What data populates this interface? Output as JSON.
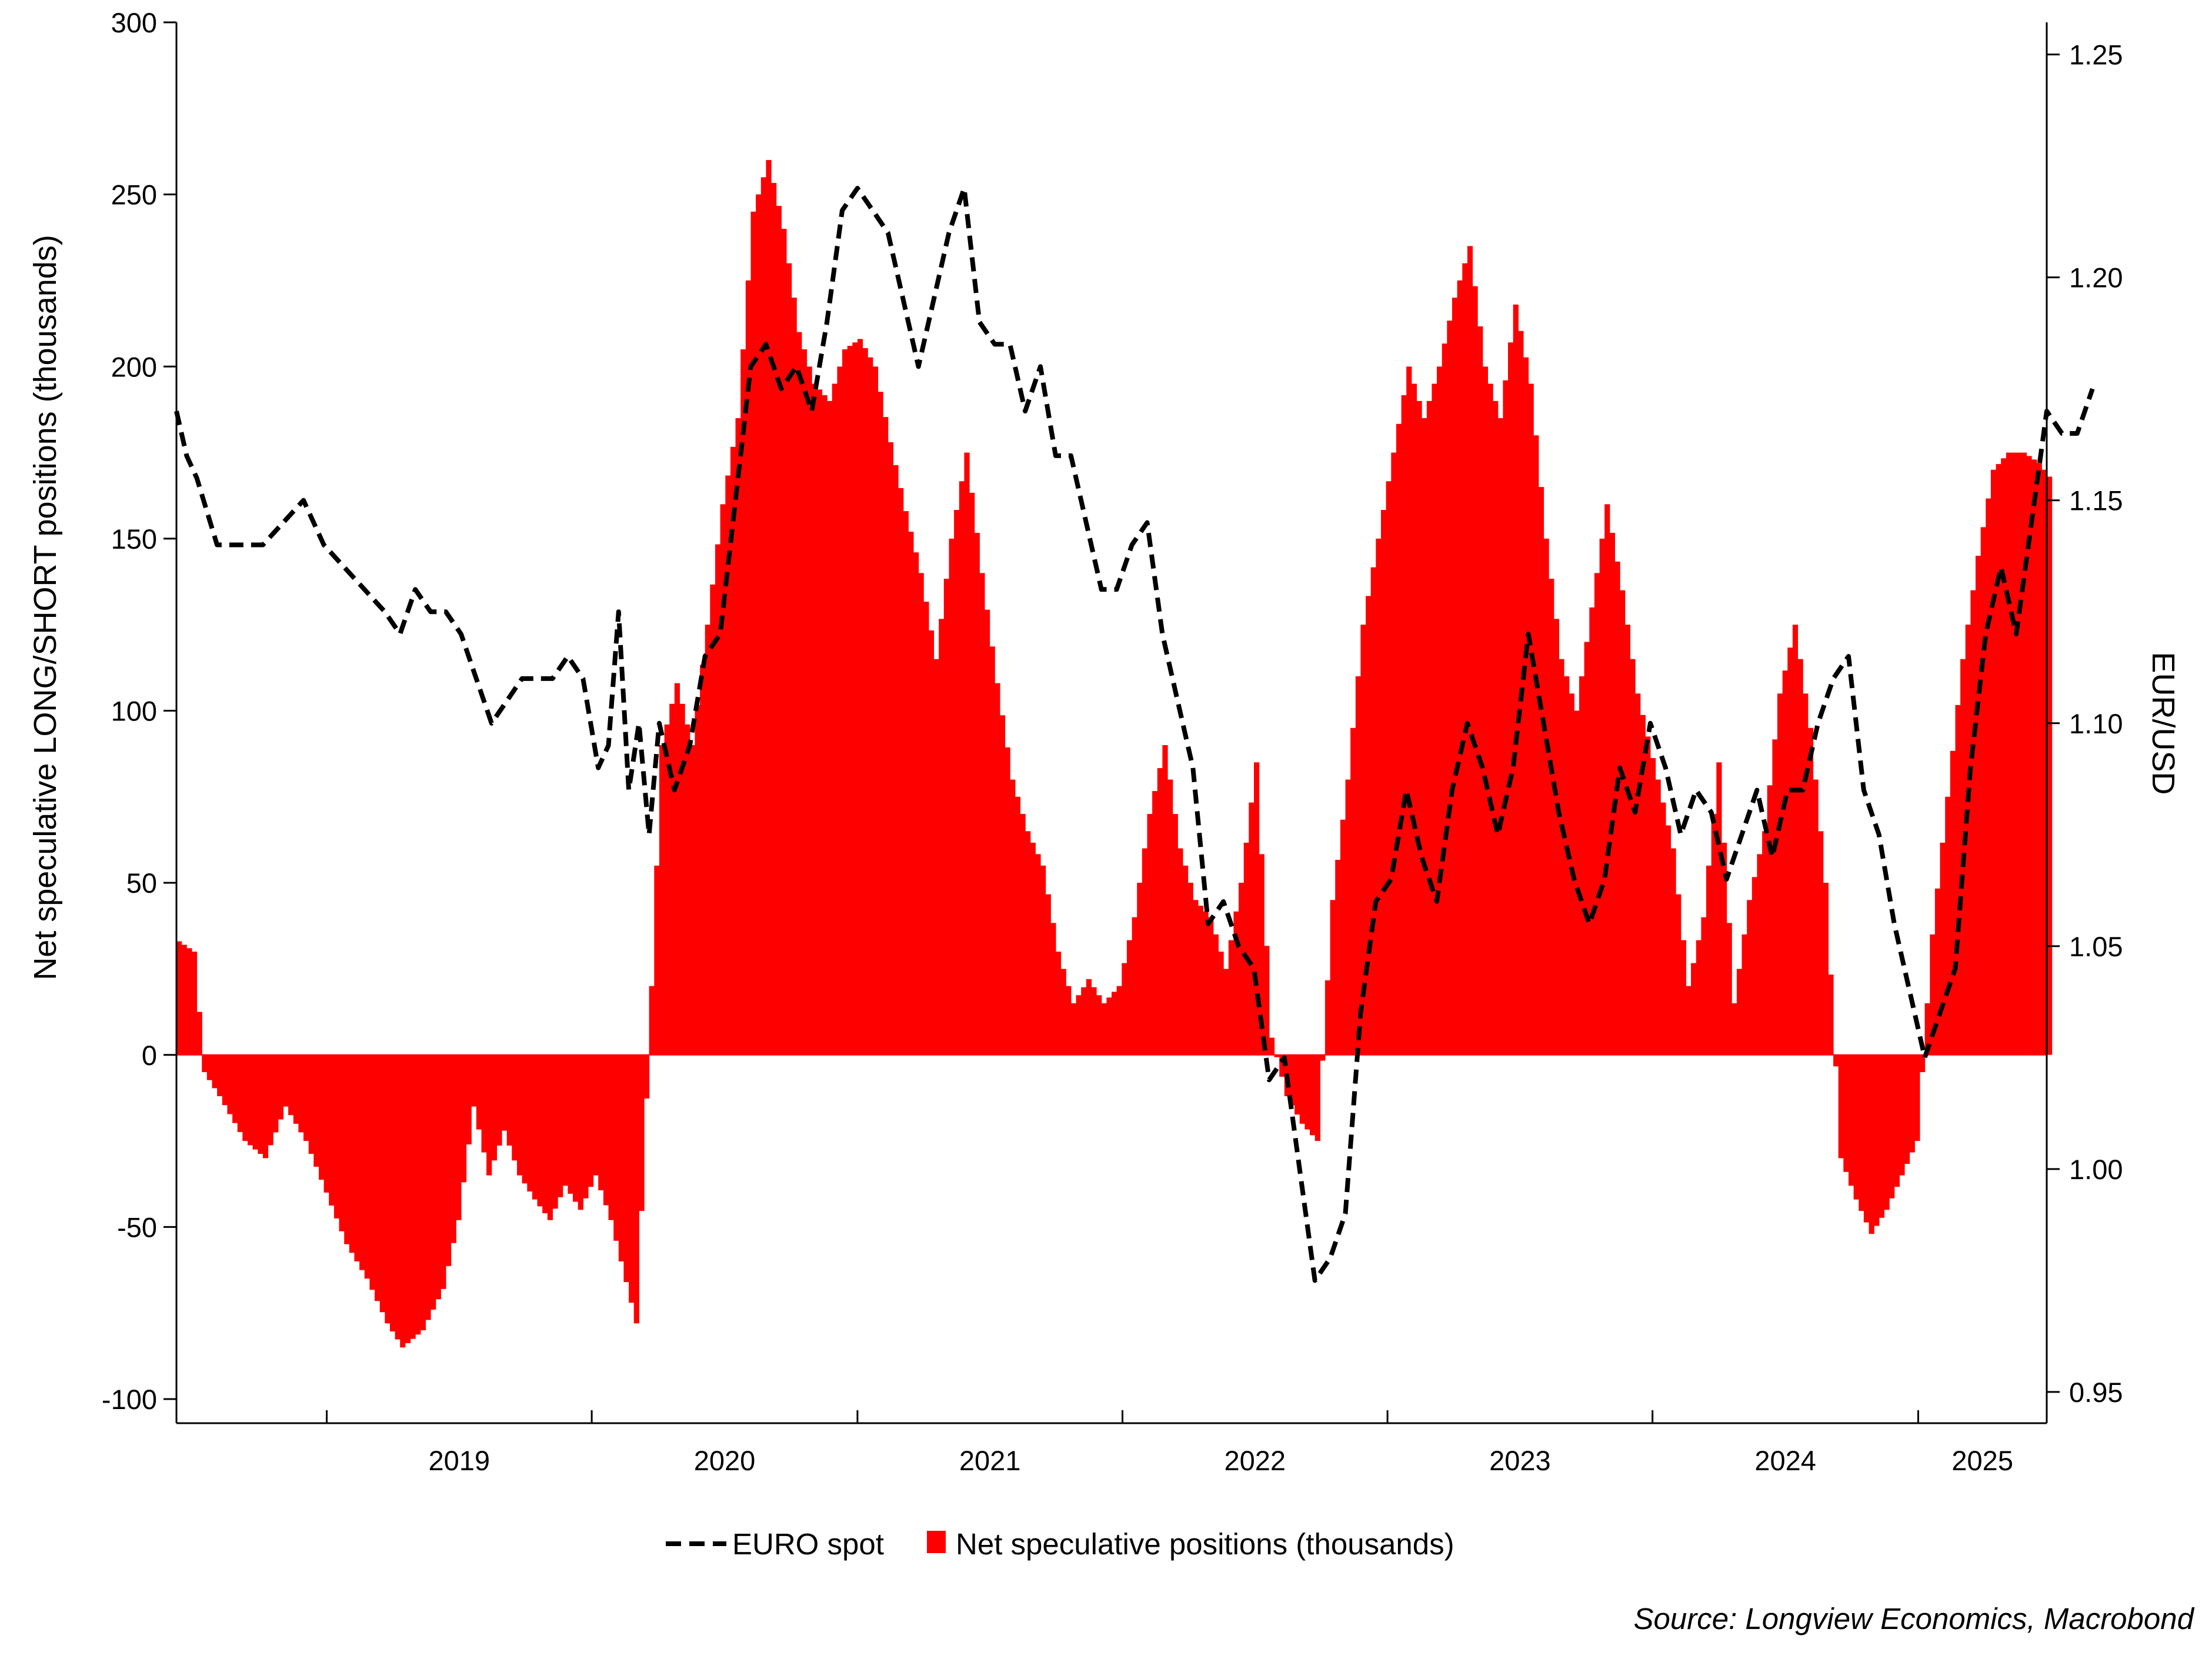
{
  "chart_data": {
    "type": "bar+line",
    "x_range": [
      "2018-06-08",
      "2025-06-27"
    ],
    "left_axis": {
      "label": "Net speculative LONG/SHORT positions (thousands)",
      "ylim": [
        -107,
        300
      ],
      "ticks": [
        300,
        250,
        200,
        150,
        100,
        50,
        0,
        -50,
        -100
      ],
      "tick_labels": [
        "300",
        "250",
        "200",
        "150",
        "100",
        "50",
        "0",
        "-50",
        "-100"
      ]
    },
    "right_axis": {
      "label": "EUR/USD",
      "ylim": [
        0.943,
        1.2572
      ],
      "ticks": [
        1.25,
        1.2,
        1.15,
        1.1,
        1.05,
        1.0,
        0.95
      ],
      "tick_labels": [
        "1.25",
        "1.20",
        "1.15",
        "1.10",
        "1.05",
        "1.00",
        "0.95"
      ]
    },
    "x_axis": {
      "year_labels": [
        "2019",
        "2020",
        "2021",
        "2022",
        "2023",
        "2024",
        "2025"
      ],
      "year_starts": [
        "2019-01-01",
        "2020-01-01",
        "2021-01-01",
        "2022-01-01",
        "2023-01-01",
        "2024-01-01",
        "2025-01-01",
        "2026-01-01"
      ]
    },
    "series": [
      {
        "name": "Net speculative positions (thousands)",
        "kind": "bar",
        "axis": "left",
        "color": "#ff0000",
        "points": [
          [
            "2018-06-08",
            33
          ],
          [
            "2018-06-29",
            30
          ],
          [
            "2018-07-13",
            -5
          ],
          [
            "2018-08-03",
            -12
          ],
          [
            "2018-09-07",
            -25
          ],
          [
            "2018-10-05",
            -30
          ],
          [
            "2018-11-02",
            -15
          ],
          [
            "2018-11-30",
            -25
          ],
          [
            "2018-12-28",
            -40
          ],
          [
            "2019-01-25",
            -55
          ],
          [
            "2019-02-22",
            -65
          ],
          [
            "2019-03-22",
            -78
          ],
          [
            "2019-04-12",
            -85
          ],
          [
            "2019-05-10",
            -80
          ],
          [
            "2019-06-07",
            -68
          ],
          [
            "2019-06-28",
            -48
          ],
          [
            "2019-07-19",
            -15
          ],
          [
            "2019-08-09",
            -35
          ],
          [
            "2019-08-30",
            -22
          ],
          [
            "2019-09-20",
            -35
          ],
          [
            "2019-10-11",
            -42
          ],
          [
            "2019-11-01",
            -48
          ],
          [
            "2019-11-22",
            -38
          ],
          [
            "2019-12-13",
            -45
          ],
          [
            "2020-01-03",
            -35
          ],
          [
            "2020-01-24",
            -48
          ],
          [
            "2020-02-07",
            -60
          ],
          [
            "2020-02-28",
            -78
          ],
          [
            "2020-03-20",
            20
          ],
          [
            "2020-04-03",
            90
          ],
          [
            "2020-04-24",
            108
          ],
          [
            "2020-05-15",
            90
          ],
          [
            "2020-06-05",
            125
          ],
          [
            "2020-06-26",
            160
          ],
          [
            "2020-07-17",
            185
          ],
          [
            "2020-08-07",
            245
          ],
          [
            "2020-08-28",
            260
          ],
          [
            "2020-09-18",
            240
          ],
          [
            "2020-10-09",
            210
          ],
          [
            "2020-10-30",
            195
          ],
          [
            "2020-11-20",
            190
          ],
          [
            "2020-12-11",
            205
          ],
          [
            "2021-01-01",
            208
          ],
          [
            "2021-01-22",
            200
          ],
          [
            "2021-02-12",
            178
          ],
          [
            "2021-03-05",
            158
          ],
          [
            "2021-03-26",
            140
          ],
          [
            "2021-04-16",
            115
          ],
          [
            "2021-05-07",
            150
          ],
          [
            "2021-05-28",
            175
          ],
          [
            "2021-06-18",
            140
          ],
          [
            "2021-07-09",
            108
          ],
          [
            "2021-07-30",
            80
          ],
          [
            "2021-08-20",
            65
          ],
          [
            "2021-09-10",
            55
          ],
          [
            "2021-10-01",
            30
          ],
          [
            "2021-10-22",
            15
          ],
          [
            "2021-11-12",
            22
          ],
          [
            "2021-12-03",
            15
          ],
          [
            "2021-12-24",
            20
          ],
          [
            "2022-01-14",
            40
          ],
          [
            "2022-02-04",
            70
          ],
          [
            "2022-02-25",
            90
          ],
          [
            "2022-03-18",
            60
          ],
          [
            "2022-04-08",
            45
          ],
          [
            "2022-04-29",
            40
          ],
          [
            "2022-05-20",
            25
          ],
          [
            "2022-06-10",
            50
          ],
          [
            "2022-07-01",
            85
          ],
          [
            "2022-07-22",
            5
          ],
          [
            "2022-08-12",
            -12
          ],
          [
            "2022-09-02",
            -20
          ],
          [
            "2022-09-23",
            -25
          ],
          [
            "2022-10-14",
            45
          ],
          [
            "2022-11-04",
            80
          ],
          [
            "2022-11-25",
            125
          ],
          [
            "2022-12-16",
            150
          ],
          [
            "2023-01-06",
            175
          ],
          [
            "2023-01-27",
            200
          ],
          [
            "2023-02-17",
            185
          ],
          [
            "2023-03-10",
            200
          ],
          [
            "2023-03-31",
            220
          ],
          [
            "2023-04-21",
            235
          ],
          [
            "2023-05-12",
            200
          ],
          [
            "2023-06-02",
            185
          ],
          [
            "2023-06-23",
            218
          ],
          [
            "2023-07-14",
            195
          ],
          [
            "2023-08-04",
            150
          ],
          [
            "2023-08-25",
            115
          ],
          [
            "2023-09-15",
            100
          ],
          [
            "2023-10-06",
            130
          ],
          [
            "2023-10-27",
            160
          ],
          [
            "2023-11-17",
            135
          ],
          [
            "2023-12-08",
            105
          ],
          [
            "2024-01-05",
            80
          ],
          [
            "2024-01-26",
            60
          ],
          [
            "2024-02-16",
            20
          ],
          [
            "2024-03-08",
            40
          ],
          [
            "2024-03-29",
            85
          ],
          [
            "2024-04-19",
            15
          ],
          [
            "2024-05-10",
            45
          ],
          [
            "2024-05-31",
            65
          ],
          [
            "2024-06-21",
            105
          ],
          [
            "2024-07-12",
            125
          ],
          [
            "2024-08-02",
            95
          ],
          [
            "2024-08-23",
            50
          ],
          [
            "2024-09-13",
            -30
          ],
          [
            "2024-10-04",
            -42
          ],
          [
            "2024-10-25",
            -52
          ],
          [
            "2024-11-15",
            -45
          ],
          [
            "2024-12-06",
            -35
          ],
          [
            "2024-12-27",
            -25
          ],
          [
            "2025-01-17",
            35
          ],
          [
            "2025-02-07",
            75
          ],
          [
            "2025-02-28",
            115
          ],
          [
            "2025-03-21",
            145
          ],
          [
            "2025-04-11",
            170
          ],
          [
            "2025-05-02",
            175
          ],
          [
            "2025-05-23",
            175
          ],
          [
            "2025-06-13",
            172
          ],
          [
            "2025-06-27",
            168
          ]
        ]
      },
      {
        "name": "EURO spot",
        "kind": "line",
        "axis": "right",
        "color": "#000000",
        "dash": "dashed",
        "points": [
          [
            "2018-06-08",
            1.17
          ],
          [
            "2018-06-22",
            1.16
          ],
          [
            "2018-07-06",
            1.155
          ],
          [
            "2018-08-03",
            1.14
          ],
          [
            "2018-09-07",
            1.14
          ],
          [
            "2018-10-05",
            1.14
          ],
          [
            "2018-11-02",
            1.145
          ],
          [
            "2018-11-30",
            1.15
          ],
          [
            "2018-12-28",
            1.14
          ],
          [
            "2019-01-25",
            1.135
          ],
          [
            "2019-02-22",
            1.13
          ],
          [
            "2019-03-22",
            1.125
          ],
          [
            "2019-04-12",
            1.12
          ],
          [
            "2019-05-03",
            1.13
          ],
          [
            "2019-05-24",
            1.125
          ],
          [
            "2019-06-14",
            1.125
          ],
          [
            "2019-07-05",
            1.12
          ],
          [
            "2019-07-26",
            1.11
          ],
          [
            "2019-08-16",
            1.1
          ],
          [
            "2019-09-06",
            1.105
          ],
          [
            "2019-09-27",
            1.11
          ],
          [
            "2019-10-18",
            1.11
          ],
          [
            "2019-11-08",
            1.11
          ],
          [
            "2019-11-29",
            1.115
          ],
          [
            "2019-12-20",
            1.11
          ],
          [
            "2020-01-10",
            1.09
          ],
          [
            "2020-01-24",
            1.095
          ],
          [
            "2020-02-07",
            1.125
          ],
          [
            "2020-02-21",
            1.085
          ],
          [
            "2020-03-06",
            1.1
          ],
          [
            "2020-03-20",
            1.075
          ],
          [
            "2020-04-03",
            1.1
          ],
          [
            "2020-04-24",
            1.085
          ],
          [
            "2020-05-15",
            1.095
          ],
          [
            "2020-06-05",
            1.115
          ],
          [
            "2020-06-26",
            1.12
          ],
          [
            "2020-07-17",
            1.15
          ],
          [
            "2020-08-07",
            1.18
          ],
          [
            "2020-08-28",
            1.185
          ],
          [
            "2020-09-18",
            1.175
          ],
          [
            "2020-10-09",
            1.18
          ],
          [
            "2020-10-30",
            1.17
          ],
          [
            "2020-11-20",
            1.19
          ],
          [
            "2020-12-11",
            1.215
          ],
          [
            "2021-01-01",
            1.22
          ],
          [
            "2021-01-22",
            1.215
          ],
          [
            "2021-02-12",
            1.21
          ],
          [
            "2021-03-05",
            1.195
          ],
          [
            "2021-03-26",
            1.18
          ],
          [
            "2021-04-16",
            1.195
          ],
          [
            "2021-05-07",
            1.21
          ],
          [
            "2021-05-28",
            1.22
          ],
          [
            "2021-06-18",
            1.19
          ],
          [
            "2021-07-09",
            1.185
          ],
          [
            "2021-07-30",
            1.185
          ],
          [
            "2021-08-20",
            1.17
          ],
          [
            "2021-09-10",
            1.18
          ],
          [
            "2021-10-01",
            1.16
          ],
          [
            "2021-10-22",
            1.16
          ],
          [
            "2021-11-12",
            1.145
          ],
          [
            "2021-12-03",
            1.13
          ],
          [
            "2021-12-24",
            1.13
          ],
          [
            "2022-01-14",
            1.14
          ],
          [
            "2022-02-04",
            1.145
          ],
          [
            "2022-02-25",
            1.12
          ],
          [
            "2022-03-18",
            1.105
          ],
          [
            "2022-04-08",
            1.09
          ],
          [
            "2022-04-29",
            1.055
          ],
          [
            "2022-05-20",
            1.06
          ],
          [
            "2022-06-10",
            1.05
          ],
          [
            "2022-07-01",
            1.045
          ],
          [
            "2022-07-22",
            1.02
          ],
          [
            "2022-08-12",
            1.025
          ],
          [
            "2022-09-02",
            1.0
          ],
          [
            "2022-09-23",
            0.975
          ],
          [
            "2022-10-14",
            0.98
          ],
          [
            "2022-11-04",
            0.99
          ],
          [
            "2022-11-25",
            1.035
          ],
          [
            "2022-12-16",
            1.06
          ],
          [
            "2023-01-06",
            1.065
          ],
          [
            "2023-01-27",
            1.085
          ],
          [
            "2023-02-17",
            1.07
          ],
          [
            "2023-03-10",
            1.06
          ],
          [
            "2023-03-31",
            1.085
          ],
          [
            "2023-04-21",
            1.1
          ],
          [
            "2023-05-12",
            1.09
          ],
          [
            "2023-06-02",
            1.075
          ],
          [
            "2023-06-23",
            1.09
          ],
          [
            "2023-07-14",
            1.12
          ],
          [
            "2023-08-04",
            1.1
          ],
          [
            "2023-08-25",
            1.08
          ],
          [
            "2023-09-15",
            1.065
          ],
          [
            "2023-10-06",
            1.055
          ],
          [
            "2023-10-27",
            1.065
          ],
          [
            "2023-11-17",
            1.09
          ],
          [
            "2023-12-08",
            1.08
          ],
          [
            "2023-12-29",
            1.1
          ],
          [
            "2024-01-19",
            1.09
          ],
          [
            "2024-02-09",
            1.075
          ],
          [
            "2024-03-01",
            1.085
          ],
          [
            "2024-03-22",
            1.08
          ],
          [
            "2024-04-12",
            1.065
          ],
          [
            "2024-05-03",
            1.075
          ],
          [
            "2024-05-24",
            1.085
          ],
          [
            "2024-06-14",
            1.07
          ],
          [
            "2024-07-05",
            1.085
          ],
          [
            "2024-07-26",
            1.085
          ],
          [
            "2024-08-16",
            1.1
          ],
          [
            "2024-09-06",
            1.11
          ],
          [
            "2024-09-27",
            1.115
          ],
          [
            "2024-10-18",
            1.085
          ],
          [
            "2024-11-08",
            1.075
          ],
          [
            "2024-11-29",
            1.055
          ],
          [
            "2024-12-20",
            1.04
          ],
          [
            "2025-01-10",
            1.025
          ],
          [
            "2025-01-31",
            1.035
          ],
          [
            "2025-02-21",
            1.045
          ],
          [
            "2025-03-14",
            1.09
          ],
          [
            "2025-04-04",
            1.12
          ],
          [
            "2025-04-25",
            1.135
          ],
          [
            "2025-05-16",
            1.12
          ],
          [
            "2025-06-06",
            1.145
          ],
          [
            "2025-06-27",
            1.17
          ],
          [
            "2025-07-18",
            1.165
          ],
          [
            "2025-08-08",
            1.165
          ],
          [
            "2025-08-29",
            1.175
          ]
        ]
      }
    ],
    "legend": {
      "placement": "bottom-center",
      "items": [
        {
          "label": "EURO spot",
          "style": "dashed-line"
        },
        {
          "label": "Net speculative positions (thousands)",
          "style": "filled-box"
        }
      ]
    },
    "grid": false
  },
  "source": "Source: Longview Economics, Macrobond"
}
